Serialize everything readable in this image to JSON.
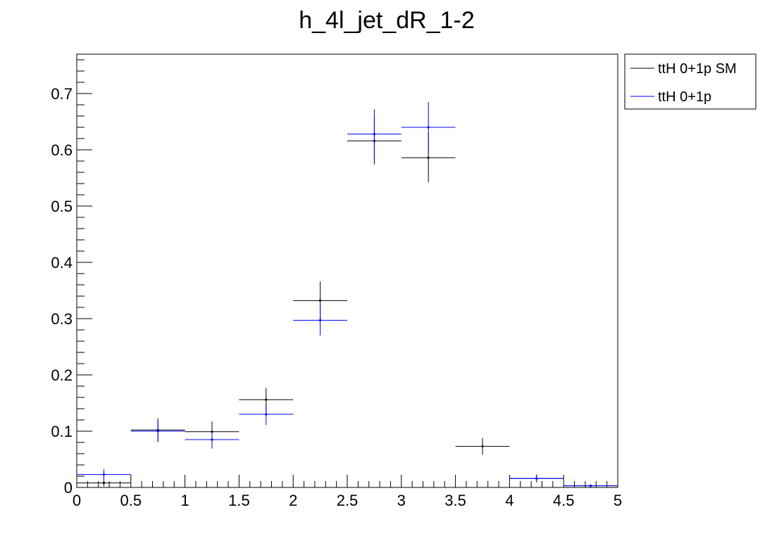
{
  "chart_data": {
    "type": "scatter",
    "title": "h_4l_jet_dR_1-2",
    "xlabel": "",
    "ylabel": "",
    "xlim": [
      0,
      5
    ],
    "ylim": [
      0,
      0.77
    ],
    "x_ticks": [
      "0",
      "0.5",
      "1",
      "1.5",
      "2",
      "2.5",
      "3",
      "3.5",
      "4",
      "4.5",
      "5"
    ],
    "y_ticks": [
      "0",
      "0.1",
      "0.2",
      "0.3",
      "0.4",
      "0.5",
      "0.6",
      "0.7"
    ],
    "x_tick_values": [
      0,
      0.5,
      1,
      1.5,
      2,
      2.5,
      3,
      3.5,
      4,
      4.5,
      5
    ],
    "y_tick_values": [
      0,
      0.1,
      0.2,
      0.3,
      0.4,
      0.5,
      0.6,
      0.7
    ],
    "bin_edges": [
      0,
      0.5,
      1,
      1.5,
      2,
      2.5,
      3,
      3.5,
      4,
      4.5,
      5
    ],
    "legend_position": "top-right-outside",
    "grid": false,
    "series": [
      {
        "name": "ttH 0+1p SM",
        "color": "#000000",
        "values": [
          0.008,
          0.102,
          0.099,
          0.156,
          0.332,
          0.616,
          0.586,
          0.073,
          0.016,
          0.003
        ],
        "errors": [
          0.006,
          0.021,
          0.018,
          0.021,
          0.034,
          0.042,
          0.044,
          0.015,
          0.007,
          0.002
        ]
      },
      {
        "name": "ttH 0+1p",
        "color": "#0000ff",
        "values": [
          0.023,
          0.1,
          0.085,
          0.13,
          0.297,
          0.628,
          0.64,
          0.0,
          0.016,
          0.003
        ],
        "errors": [
          0.01,
          0.019,
          0.016,
          0.019,
          0.027,
          0.044,
          0.045,
          0.0,
          0.006,
          0.002
        ]
      }
    ]
  }
}
